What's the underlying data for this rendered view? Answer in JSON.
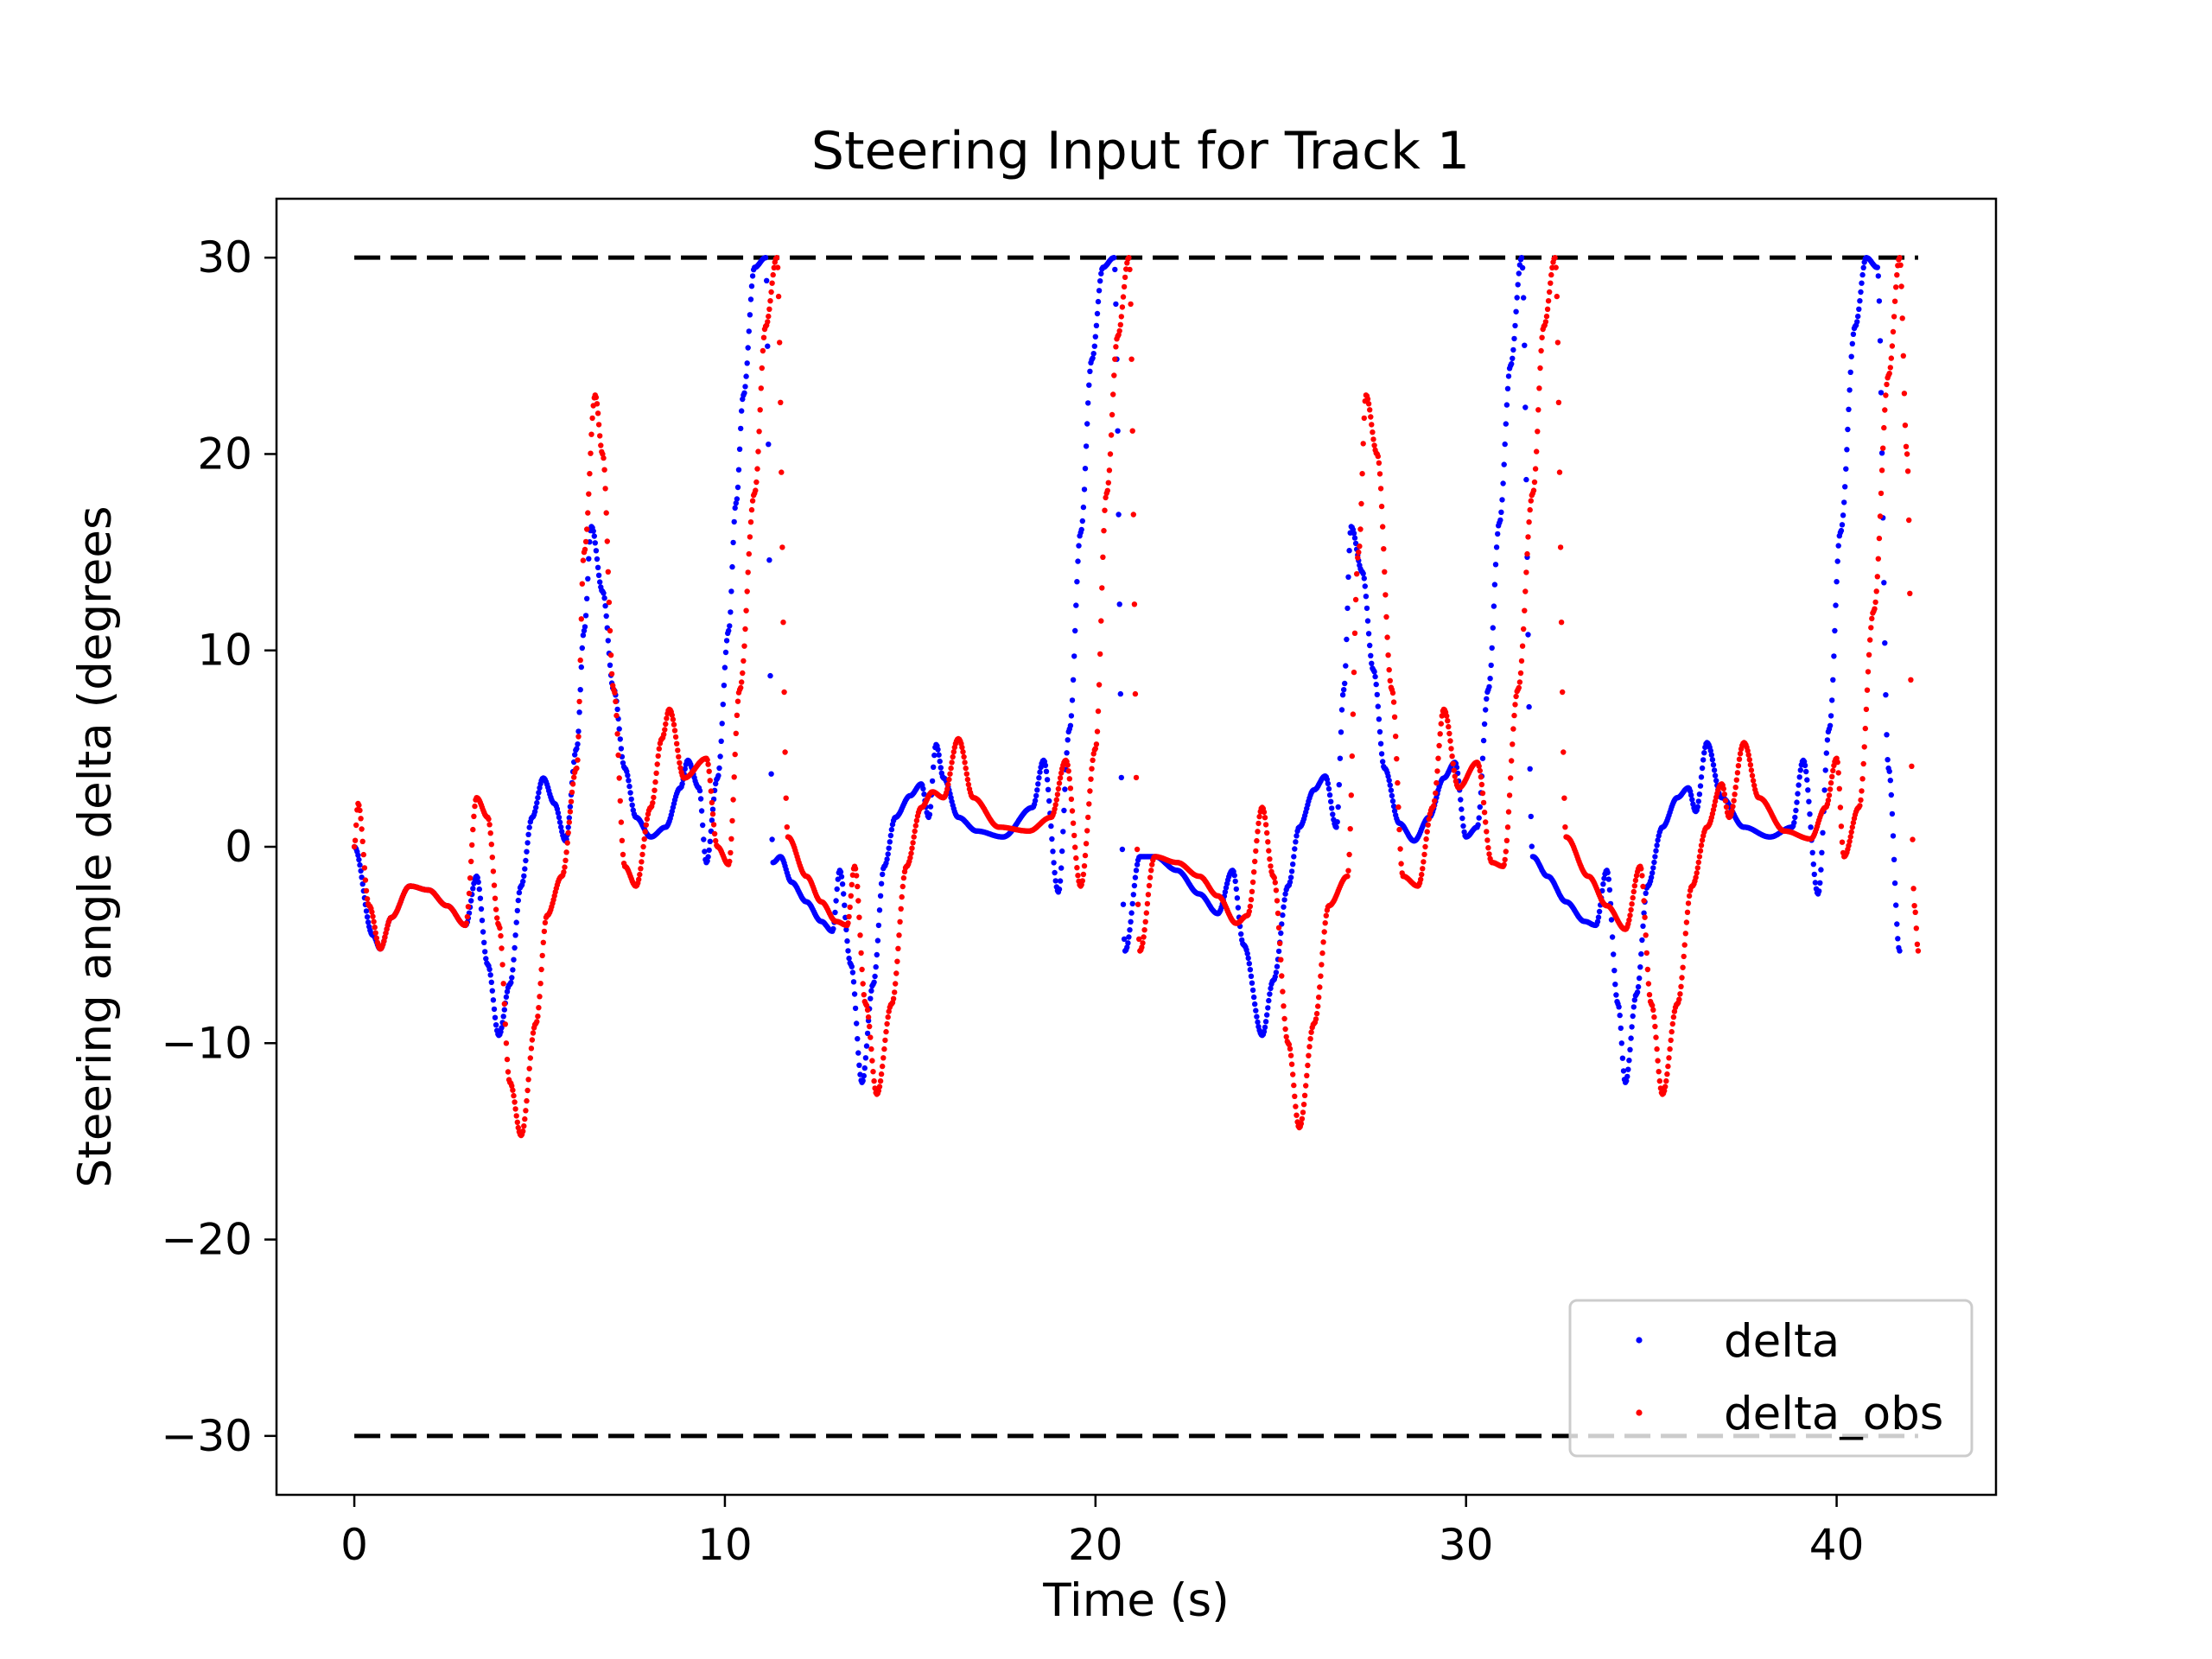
{
  "chart_data": {
    "type": "scatter",
    "title": "Steering Input for Track 1",
    "xlabel": "Time (s)",
    "ylabel": "Steering angle delta (degrees",
    "xlim": [
      -2.1,
      44.3
    ],
    "ylim": [
      -33.0,
      33.0
    ],
    "xticks": [
      0,
      10,
      20,
      30,
      40
    ],
    "yticks": [
      -30,
      -20,
      -10,
      0,
      10,
      20,
      30
    ],
    "grid": false,
    "legend_position": "lower-right",
    "reference_lines": [
      {
        "y": 30,
        "x_range": [
          0,
          42.2
        ],
        "style": "dashed",
        "color": "#000000"
      },
      {
        "y": -30,
        "x_range": [
          0,
          42.2
        ],
        "style": "dashed",
        "color": "#000000"
      }
    ],
    "series": [
      {
        "name": "delta",
        "color": "#0000ff",
        "points": [
          [
            0,
            0
          ],
          [
            0.5,
            -4.5
          ],
          [
            0.7,
            -5.2
          ],
          [
            1.0,
            -3.6
          ],
          [
            1.5,
            -2.0
          ],
          [
            2.0,
            -2.2
          ],
          [
            2.5,
            -3.0
          ],
          [
            3.0,
            -4.0
          ],
          [
            3.3,
            -1.5
          ],
          [
            3.6,
            -6.0
          ],
          [
            3.9,
            -9.6
          ],
          [
            4.2,
            -7.0
          ],
          [
            4.5,
            -2.0
          ],
          [
            4.8,
            1.5
          ],
          [
            5.1,
            3.5
          ],
          [
            5.4,
            2.2
          ],
          [
            5.7,
            0.3
          ],
          [
            6.0,
            5.0
          ],
          [
            6.2,
            11.0
          ],
          [
            6.4,
            16.3
          ],
          [
            6.7,
            13.0
          ],
          [
            7.0,
            8.0
          ],
          [
            7.3,
            4.0
          ],
          [
            7.6,
            1.5
          ],
          [
            8.0,
            0.5
          ],
          [
            8.4,
            1.0
          ],
          [
            8.8,
            3.0
          ],
          [
            9.0,
            4.4
          ],
          [
            9.3,
            3.0
          ],
          [
            9.5,
            -0.8
          ],
          [
            9.8,
            3.5
          ],
          [
            10.1,
            11.0
          ],
          [
            10.3,
            17.5
          ],
          [
            10.5,
            23.0
          ],
          [
            10.8,
            29.5
          ],
          [
            11.1,
            30.0
          ],
          [
            11.3,
            -0.8
          ],
          [
            11.5,
            -0.5
          ],
          [
            11.8,
            -1.8
          ],
          [
            12.2,
            -2.8
          ],
          [
            12.6,
            -3.8
          ],
          [
            12.9,
            -4.3
          ],
          [
            13.1,
            -1.2
          ],
          [
            13.4,
            -6.0
          ],
          [
            13.7,
            -12.0
          ],
          [
            14.0,
            -7.0
          ],
          [
            14.3,
            -1.0
          ],
          [
            14.6,
            1.5
          ],
          [
            15.0,
            2.6
          ],
          [
            15.3,
            3.2
          ],
          [
            15.5,
            1.5
          ],
          [
            15.7,
            5.2
          ],
          [
            15.9,
            3.5
          ],
          [
            16.3,
            1.5
          ],
          [
            16.8,
            0.8
          ],
          [
            17.5,
            0.5
          ],
          [
            18.3,
            2.0
          ],
          [
            18.6,
            4.4
          ],
          [
            19.0,
            -2.3
          ],
          [
            19.3,
            6.0
          ],
          [
            19.6,
            16.0
          ],
          [
            19.9,
            24.8
          ],
          [
            20.2,
            29.5
          ],
          [
            20.5,
            30.0
          ],
          [
            20.8,
            -5.3
          ],
          [
            21.2,
            -0.5
          ],
          [
            21.6,
            -0.5
          ],
          [
            22.2,
            -1.2
          ],
          [
            22.8,
            -2.4
          ],
          [
            23.3,
            -3.4
          ],
          [
            23.7,
            -1.2
          ],
          [
            24.0,
            -5.0
          ],
          [
            24.5,
            -9.6
          ],
          [
            24.8,
            -6.8
          ],
          [
            25.2,
            -2.0
          ],
          [
            25.5,
            1.0
          ],
          [
            25.9,
            2.9
          ],
          [
            26.2,
            3.6
          ],
          [
            26.5,
            1.0
          ],
          [
            26.7,
            8.0
          ],
          [
            26.9,
            16.3
          ],
          [
            27.2,
            14.0
          ],
          [
            27.5,
            9.0
          ],
          [
            27.8,
            4.0
          ],
          [
            28.2,
            1.2
          ],
          [
            28.6,
            0.3
          ],
          [
            29.0,
            1.5
          ],
          [
            29.4,
            3.5
          ],
          [
            29.7,
            4.3
          ],
          [
            30.0,
            0.5
          ],
          [
            30.3,
            1.0
          ],
          [
            30.6,
            8.0
          ],
          [
            30.9,
            16.5
          ],
          [
            31.2,
            24.5
          ],
          [
            31.5,
            30.0
          ],
          [
            31.8,
            -0.5
          ],
          [
            32.2,
            -1.5
          ],
          [
            32.7,
            -2.8
          ],
          [
            33.2,
            -3.8
          ],
          [
            33.5,
            -4.0
          ],
          [
            33.8,
            -1.2
          ],
          [
            34.1,
            -8.0
          ],
          [
            34.3,
            -12.0
          ],
          [
            34.6,
            -7.5
          ],
          [
            34.9,
            -2.0
          ],
          [
            35.3,
            1.0
          ],
          [
            35.7,
            2.5
          ],
          [
            36.0,
            3.0
          ],
          [
            36.2,
            1.8
          ],
          [
            36.5,
            5.3
          ],
          [
            36.9,
            2.5
          ],
          [
            37.5,
            1.0
          ],
          [
            38.2,
            0.5
          ],
          [
            38.8,
            1.0
          ],
          [
            39.1,
            4.4
          ],
          [
            39.5,
            -2.4
          ],
          [
            39.8,
            6.0
          ],
          [
            40.1,
            16.0
          ],
          [
            40.5,
            26.5
          ],
          [
            40.8,
            30.0
          ],
          [
            41.1,
            29.5
          ],
          [
            41.4,
            4.0
          ],
          [
            41.7,
            -5.3
          ]
        ]
      },
      {
        "name": "delta_obs",
        "color": "#ff0000",
        "points": [
          [
            0,
            0
          ],
          [
            0.1,
            2.2
          ],
          [
            0.4,
            -3.0
          ],
          [
            0.7,
            -5.2
          ],
          [
            1.0,
            -3.6
          ],
          [
            1.5,
            -2.0
          ],
          [
            2.0,
            -2.2
          ],
          [
            2.5,
            -3.0
          ],
          [
            3.0,
            -4.0
          ],
          [
            3.3,
            2.5
          ],
          [
            3.6,
            1.5
          ],
          [
            3.9,
            -4.0
          ],
          [
            4.2,
            -12.0
          ],
          [
            4.5,
            -14.7
          ],
          [
            4.9,
            -9.0
          ],
          [
            5.2,
            -3.5
          ],
          [
            5.6,
            -1.5
          ],
          [
            6.0,
            4.0
          ],
          [
            6.2,
            15.0
          ],
          [
            6.5,
            23.0
          ],
          [
            6.7,
            20.0
          ],
          [
            7.0,
            8.0
          ],
          [
            7.3,
            -1.0
          ],
          [
            7.6,
            -2.0
          ],
          [
            8.0,
            2.0
          ],
          [
            8.3,
            5.5
          ],
          [
            8.5,
            7.0
          ],
          [
            8.9,
            3.5
          ],
          [
            9.5,
            4.5
          ],
          [
            9.8,
            0
          ],
          [
            10.1,
            -0.9
          ],
          [
            10.4,
            8.0
          ],
          [
            10.8,
            18.0
          ],
          [
            11.1,
            26.5
          ],
          [
            11.4,
            30.0
          ],
          [
            11.7,
            0.5
          ],
          [
            12.2,
            -1.5
          ],
          [
            12.6,
            -2.8
          ],
          [
            13.0,
            -3.8
          ],
          [
            13.3,
            -4.0
          ],
          [
            13.5,
            -1.0
          ],
          [
            13.8,
            -8.0
          ],
          [
            14.1,
            -12.6
          ],
          [
            14.5,
            -8.0
          ],
          [
            14.9,
            -1.0
          ],
          [
            15.3,
            2.0
          ],
          [
            15.6,
            2.8
          ],
          [
            15.9,
            2.5
          ],
          [
            16.3,
            5.5
          ],
          [
            16.7,
            2.5
          ],
          [
            17.4,
            1.0
          ],
          [
            18.2,
            0.8
          ],
          [
            18.8,
            1.5
          ],
          [
            19.2,
            4.4
          ],
          [
            19.6,
            -2.0
          ],
          [
            20.0,
            5.0
          ],
          [
            20.3,
            18.0
          ],
          [
            20.6,
            26.0
          ],
          [
            20.9,
            30.0
          ],
          [
            21.2,
            -5.3
          ],
          [
            21.6,
            -0.5
          ],
          [
            22.2,
            -0.8
          ],
          [
            22.8,
            -1.5
          ],
          [
            23.3,
            -2.5
          ],
          [
            23.8,
            -3.9
          ],
          [
            24.1,
            -3.5
          ],
          [
            24.5,
            2.0
          ],
          [
            24.8,
            -1.5
          ],
          [
            25.2,
            -10.0
          ],
          [
            25.5,
            -14.3
          ],
          [
            25.9,
            -9.0
          ],
          [
            26.3,
            -3.0
          ],
          [
            26.8,
            -1.5
          ],
          [
            27.1,
            15.0
          ],
          [
            27.3,
            23.0
          ],
          [
            27.6,
            20.0
          ],
          [
            28.0,
            8.0
          ],
          [
            28.3,
            -1.5
          ],
          [
            28.7,
            -2.0
          ],
          [
            29.1,
            2.0
          ],
          [
            29.4,
            7.0
          ],
          [
            29.8,
            3.0
          ],
          [
            30.3,
            4.3
          ],
          [
            30.7,
            -0.8
          ],
          [
            31.0,
            -1.0
          ],
          [
            31.4,
            8.0
          ],
          [
            31.8,
            18.0
          ],
          [
            32.1,
            26.5
          ],
          [
            32.4,
            30.0
          ],
          [
            32.7,
            0.5
          ],
          [
            33.3,
            -1.5
          ],
          [
            33.8,
            -3.0
          ],
          [
            34.3,
            -4.2
          ],
          [
            34.7,
            -1.0
          ],
          [
            35.0,
            -8.0
          ],
          [
            35.3,
            -12.6
          ],
          [
            35.7,
            -8.0
          ],
          [
            36.1,
            -2.0
          ],
          [
            36.5,
            1.0
          ],
          [
            36.9,
            3.2
          ],
          [
            37.1,
            1.5
          ],
          [
            37.5,
            5.3
          ],
          [
            37.9,
            2.5
          ],
          [
            38.6,
            0.8
          ],
          [
            39.3,
            0.4
          ],
          [
            39.7,
            2.0
          ],
          [
            40.0,
            4.5
          ],
          [
            40.2,
            -0.5
          ],
          [
            40.6,
            2.0
          ],
          [
            41.0,
            12.0
          ],
          [
            41.4,
            24.0
          ],
          [
            41.7,
            30.0
          ],
          [
            41.9,
            20.0
          ],
          [
            42.1,
            -3.0
          ],
          [
            42.2,
            -5.3
          ]
        ]
      }
    ]
  }
}
